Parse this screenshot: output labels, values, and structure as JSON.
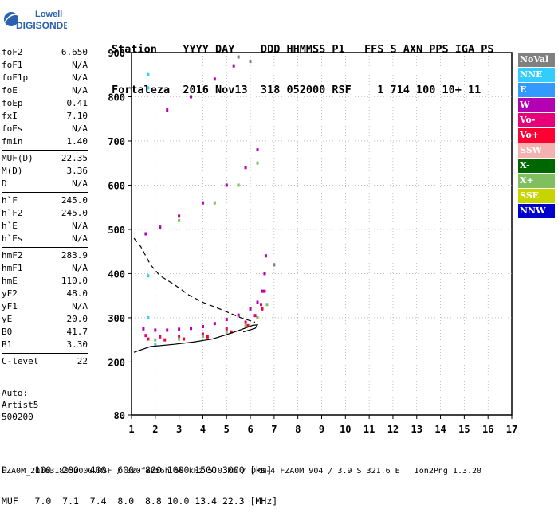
{
  "logo": {
    "line1": "Lowell",
    "line2": "DIGISONDE"
  },
  "header": {
    "row1": "Station    YYYY DAY    DDD HHMMSS P1   FFS S AXN PPS IGA PS",
    "row2": "Fortaleza  2016 Nov13  318 052000 RSF    1 714 100 10+ 11"
  },
  "params": [
    {
      "group": [
        {
          "k": "foF2",
          "v": "6.650"
        },
        {
          "k": "foF1",
          "v": "N/A"
        },
        {
          "k": "foF1p",
          "v": "N/A"
        },
        {
          "k": "foE",
          "v": "N/A"
        },
        {
          "k": "foEp",
          "v": "0.41"
        },
        {
          "k": "fxI",
          "v": "7.10"
        },
        {
          "k": "foEs",
          "v": "N/A"
        },
        {
          "k": "fmin",
          "v": "1.40"
        }
      ]
    },
    {
      "group": [
        {
          "k": "MUF(D)",
          "v": "22.35"
        },
        {
          "k": "M(D)",
          "v": "3.36"
        },
        {
          "k": "D",
          "v": "N/A"
        }
      ]
    },
    {
      "group": [
        {
          "k": "h`F",
          "v": "245.0"
        },
        {
          "k": "h`F2",
          "v": "245.0"
        },
        {
          "k": "h`E",
          "v": "N/A"
        },
        {
          "k": "h`Es",
          "v": "N/A"
        }
      ]
    },
    {
      "group": [
        {
          "k": "hmF2",
          "v": "283.9"
        },
        {
          "k": "hmF1",
          "v": "N/A"
        },
        {
          "k": "hmE",
          "v": "110.0"
        },
        {
          "k": "yF2",
          "v": "48.0"
        },
        {
          "k": "yF1",
          "v": "N/A"
        },
        {
          "k": "yE",
          "v": "20.0"
        },
        {
          "k": "B0",
          "v": "41.7"
        },
        {
          "k": "B1",
          "v": "3.30"
        }
      ]
    },
    {
      "group": [
        {
          "k": "C-level",
          "v": "22"
        }
      ]
    }
  ],
  "autoscale": {
    "line1": "Auto:",
    "line2": "Artist5",
    "line3": "500200"
  },
  "legend": [
    {
      "label": "NoVal",
      "color": "#808080"
    },
    {
      "label": "NNE",
      "color": "#33ccff"
    },
    {
      "label": "E",
      "color": "#3399ff"
    },
    {
      "label": "W",
      "color": "#b300b3"
    },
    {
      "label": "Vo-",
      "color": "#e6007a"
    },
    {
      "label": "Vo+",
      "color": "#ff0033"
    },
    {
      "label": "SSW",
      "color": "#f5b0b0"
    },
    {
      "label": "X-",
      "color": "#006600"
    },
    {
      "label": "X+",
      "color": "#7fbf5f"
    },
    {
      "label": "SSE",
      "color": "#c8d400"
    },
    {
      "label": "NNW",
      "color": "#0000cc"
    }
  ],
  "dmuf": {
    "row1": "D     100  200  400  600  800 1000 1500 3000 [km]",
    "row2": "MUF   7.0  7.1  7.4  8.0  8.8 10.0 13.4 22.3 [MHz]"
  },
  "footer": "FZA0M_2016318052000.RSF / 320fx256h 50 kHz 5.0 km / DPS-4 FZA0M 904 / 3.9 S 321.6 E   Ion2Png 1.3.20",
  "chart_data": {
    "type": "scatter",
    "xlim": [
      1,
      17
    ],
    "ylim": [
      80,
      900
    ],
    "x_ticks": [
      1,
      2,
      3,
      4,
      5,
      6,
      7,
      8,
      9,
      10,
      11,
      12,
      13,
      14,
      15,
      16,
      17
    ],
    "y_ticks": [
      80,
      200,
      300,
      400,
      500,
      600,
      700,
      800,
      900
    ],
    "grid": true,
    "series": [
      {
        "name": "W",
        "color": "#b300b3",
        "points": [
          [
            1.5,
            275
          ],
          [
            2.0,
            272
          ],
          [
            2.5,
            272
          ],
          [
            3.0,
            274
          ],
          [
            3.5,
            276
          ],
          [
            4.0,
            280
          ],
          [
            4.5,
            287
          ],
          [
            5.0,
            296
          ],
          [
            5.5,
            306
          ],
          [
            6.0,
            320
          ],
          [
            6.3,
            335
          ],
          [
            6.5,
            360
          ],
          [
            6.6,
            400
          ],
          [
            6.65,
            440
          ],
          [
            1.6,
            490
          ],
          [
            2.2,
            505
          ],
          [
            3.0,
            530
          ],
          [
            4.0,
            560
          ],
          [
            5.0,
            600
          ],
          [
            5.8,
            640
          ],
          [
            6.3,
            680
          ],
          [
            2.5,
            770
          ],
          [
            3.5,
            800
          ],
          [
            4.5,
            840
          ],
          [
            5.3,
            870
          ]
        ]
      },
      {
        "name": "Vo-",
        "color": "#e6007a",
        "points": [
          [
            1.6,
            260
          ],
          [
            2.2,
            257
          ],
          [
            3.0,
            258
          ],
          [
            4.0,
            263
          ],
          [
            5.0,
            275
          ],
          [
            5.8,
            290
          ],
          [
            6.2,
            305
          ],
          [
            6.45,
            330
          ],
          [
            6.6,
            360
          ]
        ]
      },
      {
        "name": "Vo+",
        "color": "#ff0033",
        "points": [
          [
            1.7,
            252
          ],
          [
            2.4,
            250
          ],
          [
            3.2,
            252
          ],
          [
            4.2,
            257
          ],
          [
            5.2,
            268
          ],
          [
            5.9,
            282
          ],
          [
            6.3,
            300
          ],
          [
            6.5,
            320
          ]
        ]
      },
      {
        "name": "X+",
        "color": "#7fbf5f",
        "points": [
          [
            2.0,
            250
          ],
          [
            3.0,
            252
          ],
          [
            4.0,
            258
          ],
          [
            5.0,
            268
          ],
          [
            5.8,
            283
          ],
          [
            6.3,
            300
          ],
          [
            6.7,
            330
          ],
          [
            3.0,
            520
          ],
          [
            4.5,
            560
          ],
          [
            5.5,
            600
          ],
          [
            6.3,
            650
          ]
        ]
      },
      {
        "name": "NNE",
        "color": "#33ccff",
        "points": [
          [
            1.7,
            850
          ],
          [
            1.7,
            820
          ],
          [
            1.7,
            395
          ],
          [
            1.7,
            300
          ],
          [
            2.0,
            240
          ]
        ]
      },
      {
        "name": "NoVal",
        "color": "#808080",
        "points": [
          [
            6.0,
            880
          ],
          [
            5.5,
            890
          ],
          [
            7.0,
            420
          ]
        ]
      }
    ],
    "curves": [
      {
        "name": "profile-solid",
        "style": "solid",
        "points": [
          [
            1.1,
            222
          ],
          [
            1.8,
            235
          ],
          [
            2.8,
            240
          ],
          [
            3.6,
            245
          ],
          [
            4.4,
            252
          ],
          [
            5.0,
            262
          ],
          [
            5.6,
            273
          ],
          [
            6.1,
            283
          ],
          [
            6.3,
            284
          ],
          [
            6.2,
            276
          ],
          [
            5.7,
            268
          ]
        ]
      },
      {
        "name": "profile-dashed",
        "style": "dashed",
        "points": [
          [
            1.1,
            480
          ],
          [
            1.4,
            460
          ],
          [
            1.8,
            420
          ],
          [
            2.2,
            395
          ],
          [
            2.8,
            375
          ],
          [
            3.4,
            352
          ],
          [
            4.0,
            335
          ],
          [
            4.8,
            318
          ],
          [
            5.6,
            300
          ],
          [
            6.2,
            290
          ]
        ]
      }
    ]
  }
}
